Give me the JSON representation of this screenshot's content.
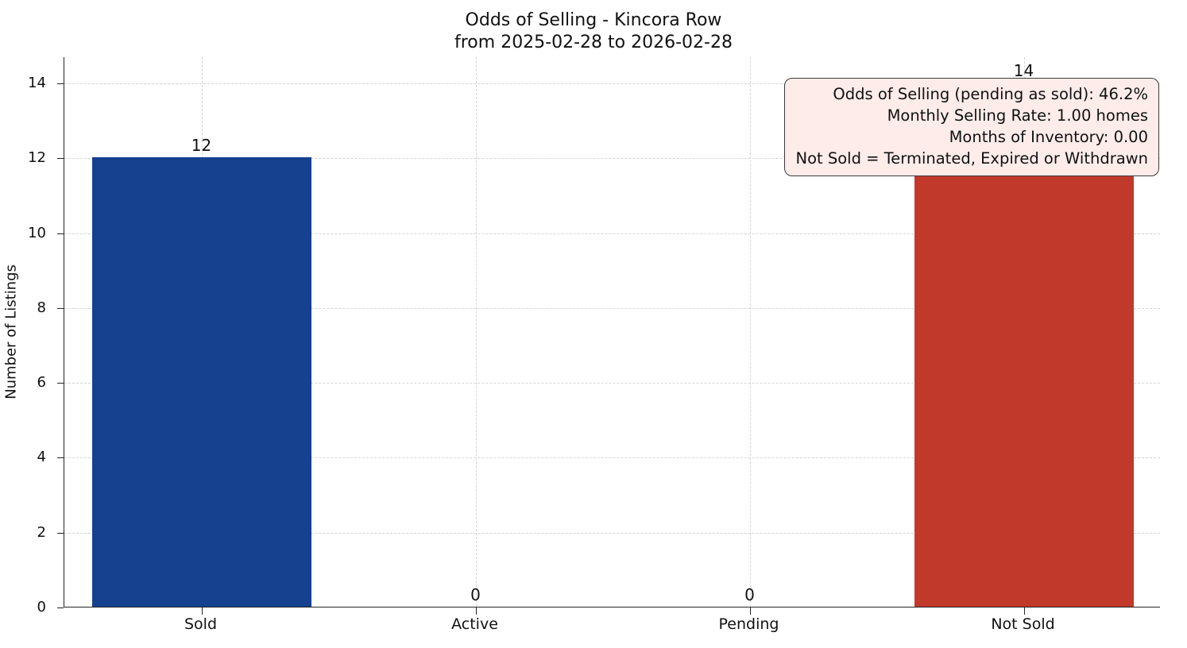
{
  "title": {
    "line1": "Odds of Selling - Kincora Row",
    "line2": "from 2025-02-28 to 2026-02-28"
  },
  "annotation": {
    "lines": [
      "Odds of Selling (pending as sold): 46.2%",
      "Monthly Selling Rate: 1.00 homes",
      "Months of Inventory: 0.00",
      "Not Sold = Terminated, Expired or Withdrawn"
    ],
    "background": "#fdecea",
    "border_color": "#3a3a3a"
  },
  "chart_data": {
    "type": "bar",
    "title": "Odds of Selling - Kincora Row\nfrom 2025-02-28 to 2026-02-28",
    "categories": [
      "Sold",
      "Active",
      "Pending",
      "Not Sold"
    ],
    "values": [
      12,
      0,
      0,
      14
    ],
    "value_labels": [
      "12",
      "0",
      "0",
      "14"
    ],
    "colors": [
      "#15418e",
      null,
      null,
      "#c0392b"
    ],
    "xlabel": "",
    "ylabel": "Number of Listings",
    "ylim": [
      0,
      14.7
    ],
    "yticks": [
      0,
      2,
      4,
      6,
      8,
      10,
      12,
      14
    ],
    "grid": "dashed both axes",
    "legend": "none",
    "bar_width_fraction": 0.8
  }
}
